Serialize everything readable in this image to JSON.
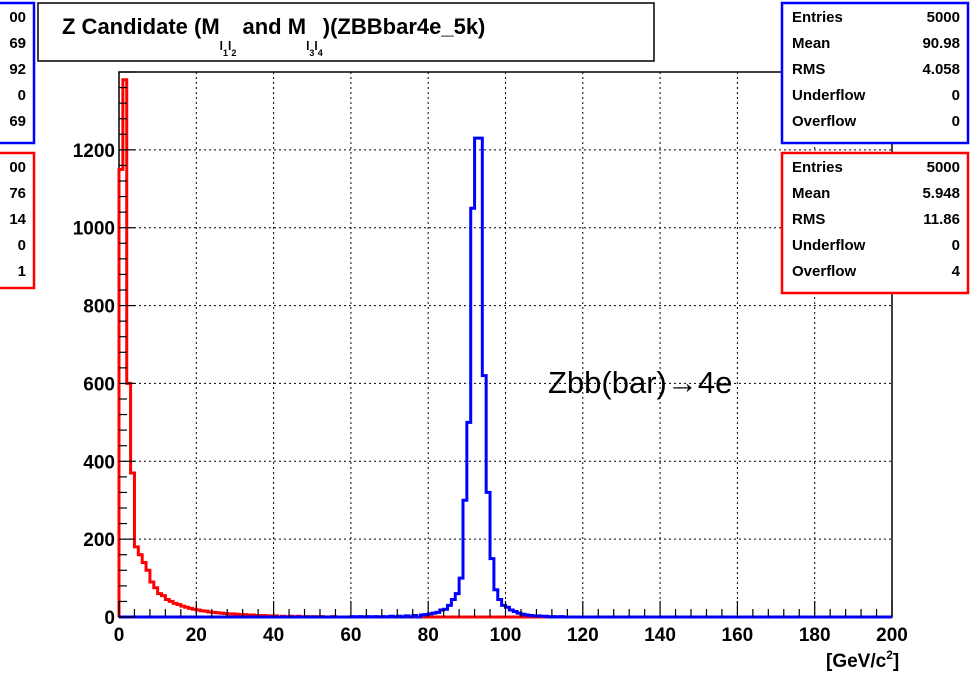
{
  "chart_data": {
    "type": "bar",
    "title": {
      "prefix": "Z Candidate (M",
      "sub1": "l",
      "sub1_idx": "1",
      "sub1b": "l",
      "sub1b_idx": "2",
      "mid": " and M",
      "sub2": "l",
      "sub2_idx": "3",
      "sub2b": "l",
      "sub2b_idx": "4",
      "suffix": ")(ZBBbar4e_5k)"
    },
    "xlabel": {
      "unit_prefix": "[GeV/c",
      "unit_sup": "2",
      "unit_suffix": "]"
    },
    "ylabel": "",
    "xlim": [
      0,
      200
    ],
    "ylim": [
      0,
      1400
    ],
    "x_ticks": [
      "0",
      "20",
      "40",
      "60",
      "80",
      "100",
      "120",
      "140",
      "160",
      "180",
      "200"
    ],
    "y_ticks": [
      "0",
      "200",
      "400",
      "600",
      "800",
      "1000",
      "1200"
    ],
    "grid": true,
    "annotation": "Zbb(bar)→4e",
    "bin_width": 1,
    "series": [
      {
        "color": "#0000ff",
        "bins": [
          [
            60,
            1
          ],
          [
            62,
            1
          ],
          [
            64,
            1
          ],
          [
            66,
            1
          ],
          [
            68,
            1
          ],
          [
            70,
            2
          ],
          [
            72,
            2
          ],
          [
            74,
            3
          ],
          [
            76,
            4
          ],
          [
            78,
            5
          ],
          [
            79,
            6
          ],
          [
            80,
            8
          ],
          [
            81,
            10
          ],
          [
            82,
            12
          ],
          [
            83,
            18
          ],
          [
            84,
            20
          ],
          [
            85,
            30
          ],
          [
            86,
            45
          ],
          [
            87,
            60
          ],
          [
            88,
            100
          ],
          [
            89,
            300
          ],
          [
            90,
            500
          ],
          [
            91,
            1050
          ],
          [
            92,
            1230
          ],
          [
            93,
            1230
          ],
          [
            94,
            620
          ],
          [
            95,
            320
          ],
          [
            96,
            150
          ],
          [
            97,
            70
          ],
          [
            98,
            45
          ],
          [
            99,
            30
          ],
          [
            100,
            25
          ],
          [
            101,
            18
          ],
          [
            102,
            14
          ],
          [
            103,
            10
          ],
          [
            104,
            7
          ],
          [
            105,
            5
          ],
          [
            106,
            4
          ],
          [
            107,
            3
          ],
          [
            108,
            3
          ],
          [
            109,
            2
          ],
          [
            110,
            2
          ],
          [
            112,
            1
          ],
          [
            114,
            1
          ]
        ],
        "stats": [
          {
            "label": "Entries",
            "value": "5000"
          },
          {
            "label": "Mean",
            "value": "90.98"
          },
          {
            "label": "RMS",
            "value": "4.058"
          },
          {
            "label": "Underflow",
            "value": "0"
          },
          {
            "label": "Overflow",
            "value": "0"
          }
        ]
      },
      {
        "color": "#ff0000",
        "bins": [
          [
            0,
            1150
          ],
          [
            1,
            1380
          ],
          [
            2,
            600
          ],
          [
            3,
            370
          ],
          [
            4,
            180
          ],
          [
            5,
            160
          ],
          [
            6,
            140
          ],
          [
            7,
            120
          ],
          [
            8,
            90
          ],
          [
            9,
            75
          ],
          [
            10,
            60
          ],
          [
            11,
            55
          ],
          [
            12,
            45
          ],
          [
            13,
            40
          ],
          [
            14,
            35
          ],
          [
            15,
            32
          ],
          [
            16,
            28
          ],
          [
            17,
            25
          ],
          [
            18,
            22
          ],
          [
            19,
            20
          ],
          [
            20,
            18
          ],
          [
            21,
            16
          ],
          [
            22,
            15
          ],
          [
            23,
            13
          ],
          [
            24,
            12
          ],
          [
            25,
            11
          ],
          [
            26,
            10
          ],
          [
            27,
            9
          ],
          [
            28,
            8
          ],
          [
            29,
            8
          ],
          [
            30,
            7
          ],
          [
            31,
            6
          ],
          [
            32,
            6
          ],
          [
            33,
            5
          ],
          [
            34,
            5
          ],
          [
            35,
            4
          ],
          [
            36,
            4
          ],
          [
            37,
            4
          ],
          [
            38,
            3
          ],
          [
            39,
            3
          ],
          [
            40,
            3
          ],
          [
            42,
            2
          ],
          [
            44,
            2
          ],
          [
            46,
            2
          ],
          [
            48,
            1
          ],
          [
            50,
            1
          ],
          [
            52,
            1
          ],
          [
            55,
            1
          ]
        ],
        "stats": [
          {
            "label": "Entries",
            "value": "5000"
          },
          {
            "label": "Mean",
            "value": "5.948"
          },
          {
            "label": "RMS",
            "value": "11.86"
          },
          {
            "label": "Underflow",
            "value": "0"
          },
          {
            "label": "Overflow",
            "value": "4"
          }
        ]
      }
    ],
    "left_stat_fragments": {
      "blue": [
        "00",
        "69",
        "92",
        "0",
        "69"
      ],
      "red": [
        "00",
        "76",
        "14",
        "0",
        "1"
      ]
    }
  }
}
